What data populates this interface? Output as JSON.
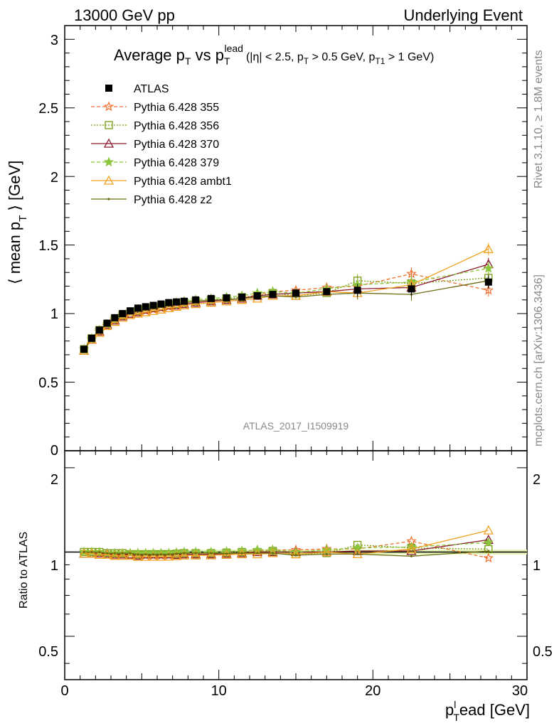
{
  "header": {
    "left": "13000 GeV pp",
    "right": "Underlying Event",
    "side_top": "Rivet 3.1.10, ≥ 1.8M events",
    "side_bottom": "mcplots.cern.ch [arXiv:1306.3436]",
    "analysis_id": "ATLAS_2017_I1509919"
  },
  "title": {
    "main": "Average p",
    "main_sub": "T",
    "vs": " vs p",
    "vs_sub": "T",
    "vs_sup": "lead",
    "cuts_a": "(|η| < 2.5, p",
    "cuts_sub1": "T",
    "cuts_b": " > 0.5 GeV, p",
    "cuts_sub2": "T1",
    "cuts_c": " > 1 GeV)"
  },
  "axes": {
    "ylabel_main": "⟨ mean p",
    "ylabel_main_sub": "T",
    "ylabel_main_end": " ⟩ [GeV]",
    "ylabel_ratio": "Ratio to ATLAS",
    "xlabel": "p",
    "xlabel_sup": "l",
    "xlabel_sub": "T",
    "xlabel_end": "ead [GeV]",
    "main_yticks": [
      "0",
      "0.5",
      "1",
      "1.5",
      "2",
      "2.5",
      "3"
    ],
    "ratio_yticks": [
      "0.5",
      "1",
      "2"
    ],
    "xticks": [
      "0",
      "10",
      "20",
      "30"
    ]
  },
  "legend": [
    {
      "label": "ATLAS",
      "color": "#000000",
      "marker": "square-filled",
      "line": "none"
    },
    {
      "label": "Pythia 6.428 355",
      "color": "#f07030",
      "marker": "star-open",
      "line": "dashed"
    },
    {
      "label": "Pythia 6.428 356",
      "color": "#7a9a10",
      "marker": "square-open",
      "line": "dotted"
    },
    {
      "label": "Pythia 6.428 370",
      "color": "#8b1a2e",
      "marker": "triangle-open",
      "line": "solid"
    },
    {
      "label": "Pythia 6.428 379",
      "color": "#8cc43c",
      "marker": "star-filled",
      "line": "dashed"
    },
    {
      "label": "Pythia 6.428 ambt1",
      "color": "#f0a020",
      "marker": "triangle-open",
      "line": "solid"
    },
    {
      "label": "Pythia 6.428 z2",
      "color": "#6b6b10",
      "marker": "dot",
      "line": "solid"
    }
  ],
  "chart_data": {
    "type": "line",
    "x": [
      1.25,
      1.75,
      2.25,
      2.75,
      3.25,
      3.75,
      4.25,
      4.75,
      5.25,
      5.75,
      6.25,
      6.75,
      7.25,
      7.75,
      8.5,
      9.5,
      10.5,
      11.5,
      12.5,
      13.5,
      15.0,
      17.0,
      19.0,
      22.5,
      27.5
    ],
    "xlim": [
      0,
      30
    ],
    "ylim_main": [
      0,
      3.1
    ],
    "ylim_ratio": [
      0.35,
      2.3
    ],
    "series": [
      {
        "name": "ATLAS",
        "values": [
          0.74,
          0.82,
          0.88,
          0.93,
          0.97,
          1.0,
          1.02,
          1.04,
          1.05,
          1.06,
          1.07,
          1.08,
          1.085,
          1.09,
          1.1,
          1.11,
          1.115,
          1.12,
          1.13,
          1.14,
          1.15,
          1.16,
          1.17,
          1.18,
          1.23
        ]
      },
      {
        "name": "Pythia 6.428 355",
        "values": [
          0.74,
          0.81,
          0.87,
          0.91,
          0.95,
          0.98,
          0.99,
          1.01,
          1.02,
          1.03,
          1.04,
          1.05,
          1.06,
          1.07,
          1.08,
          1.09,
          1.1,
          1.11,
          1.14,
          1.16,
          1.17,
          1.19,
          1.2,
          1.29,
          1.17
        ]
      },
      {
        "name": "Pythia 6.428 356",
        "values": [
          0.74,
          0.82,
          0.88,
          0.92,
          0.96,
          0.99,
          1.0,
          1.02,
          1.03,
          1.04,
          1.05,
          1.06,
          1.07,
          1.08,
          1.09,
          1.1,
          1.11,
          1.12,
          1.13,
          1.15,
          1.13,
          1.15,
          1.24,
          1.22,
          1.26
        ]
      },
      {
        "name": "Pythia 6.428 370",
        "values": [
          0.73,
          0.81,
          0.87,
          0.92,
          0.95,
          0.98,
          1.0,
          1.01,
          1.03,
          1.04,
          1.05,
          1.06,
          1.06,
          1.07,
          1.08,
          1.09,
          1.1,
          1.11,
          1.13,
          1.14,
          1.15,
          1.16,
          1.18,
          1.19,
          1.36
        ]
      },
      {
        "name": "Pythia 6.428 379",
        "values": [
          0.74,
          0.82,
          0.88,
          0.92,
          0.96,
          0.99,
          1.01,
          1.03,
          1.04,
          1.05,
          1.06,
          1.07,
          1.08,
          1.09,
          1.1,
          1.11,
          1.12,
          1.13,
          1.15,
          1.16,
          1.15,
          1.18,
          1.21,
          1.23,
          1.33
        ]
      },
      {
        "name": "Pythia 6.428 ambt1",
        "values": [
          0.73,
          0.81,
          0.86,
          0.91,
          0.94,
          0.97,
          0.99,
          1.0,
          1.01,
          1.02,
          1.03,
          1.04,
          1.05,
          1.06,
          1.07,
          1.08,
          1.09,
          1.1,
          1.11,
          1.13,
          1.13,
          1.16,
          1.15,
          1.21,
          1.47
        ]
      },
      {
        "name": "Pythia 6.428 z2",
        "values": [
          0.74,
          0.82,
          0.88,
          0.92,
          0.96,
          0.99,
          1.01,
          1.02,
          1.03,
          1.04,
          1.05,
          1.06,
          1.07,
          1.08,
          1.09,
          1.1,
          1.1,
          1.11,
          1.12,
          1.13,
          1.12,
          1.14,
          1.15,
          1.14,
          1.24
        ]
      }
    ]
  }
}
